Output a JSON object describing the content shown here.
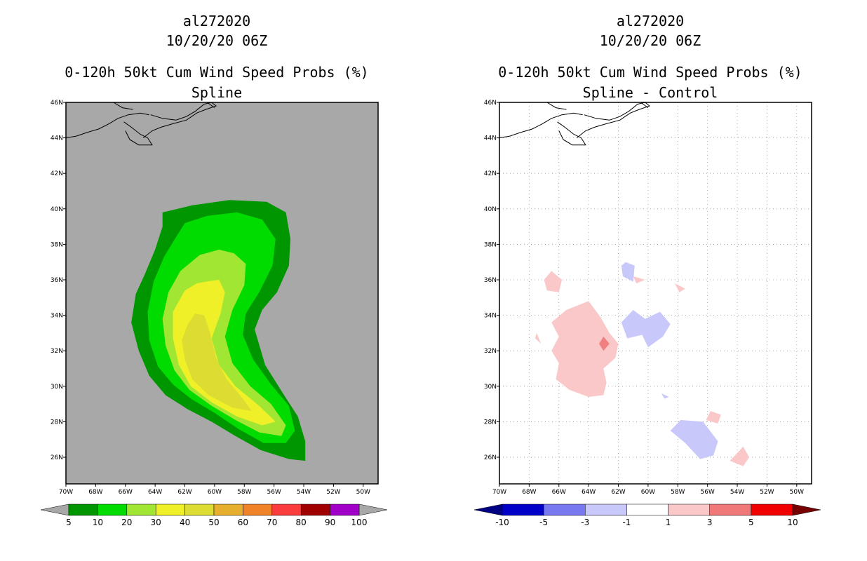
{
  "chart_data": [
    {
      "type": "contour-map",
      "storm_id": "al272020",
      "datetime": "10/20/20 06Z",
      "title": "0-120h 50kt Cum Wind Speed Probs (%)",
      "subtitle": "Spline",
      "lat_ticks": [
        "46N",
        "44N",
        "42N",
        "40N",
        "38N",
        "36N",
        "34N",
        "32N",
        "30N",
        "28N",
        "26N"
      ],
      "lon_ticks": [
        "70W",
        "68W",
        "66W",
        "64W",
        "62W",
        "60W",
        "58W",
        "56W",
        "54W",
        "52W",
        "50W"
      ],
      "lat_range": [
        24.5,
        46
      ],
      "lon_range": [
        -70,
        -49
      ],
      "background_color": "#a8a8a8",
      "contour_levels": [
        5,
        10,
        20,
        30,
        40,
        50
      ],
      "contour_colors": [
        "#009600",
        "#00dc00",
        "#a0e632",
        "#f0f028",
        "#dcdc32",
        "#e6af2d"
      ],
      "colorbar": {
        "labels": [
          "5",
          "10",
          "20",
          "30",
          "40",
          "50",
          "60",
          "70",
          "80",
          "90",
          "100"
        ],
        "colors": [
          "#009600",
          "#00dc00",
          "#a0e632",
          "#f0f028",
          "#dcdc32",
          "#e6af2d",
          "#f08228",
          "#fa3c3c",
          "#a00000",
          "#a000c8"
        ],
        "arrow_color": "#a8a8a8"
      }
    },
    {
      "type": "contour-map",
      "storm_id": "al272020",
      "datetime": "10/20/20 06Z",
      "title": "0-120h 50kt Cum Wind Speed Probs (%)",
      "subtitle": "Spline - Control",
      "lat_ticks": [
        "46N",
        "44N",
        "42N",
        "40N",
        "38N",
        "36N",
        "34N",
        "32N",
        "30N",
        "28N",
        "26N"
      ],
      "lon_ticks": [
        "70W",
        "68W",
        "66W",
        "64W",
        "62W",
        "60W",
        "58W",
        "56W",
        "54W",
        "52W",
        "50W"
      ],
      "lat_range": [
        24.5,
        46
      ],
      "lon_range": [
        -70,
        -49
      ],
      "grid": true,
      "difference_colors": {
        "pos_1_3": "#fac8c8",
        "pos_3_5": "#f08080",
        "neg_1_3": "#c8c8fa"
      },
      "colorbar": {
        "labels": [
          "-10",
          "-5",
          "-3",
          "-1",
          "1",
          "3",
          "5",
          "10"
        ],
        "colors": [
          "#0000c8",
          "#7878f0",
          "#c8c8fa",
          "#ffffff",
          "#fac8c8",
          "#f07878",
          "#f00000"
        ],
        "arrow_left": "#000082",
        "arrow_right": "#780000"
      }
    }
  ]
}
